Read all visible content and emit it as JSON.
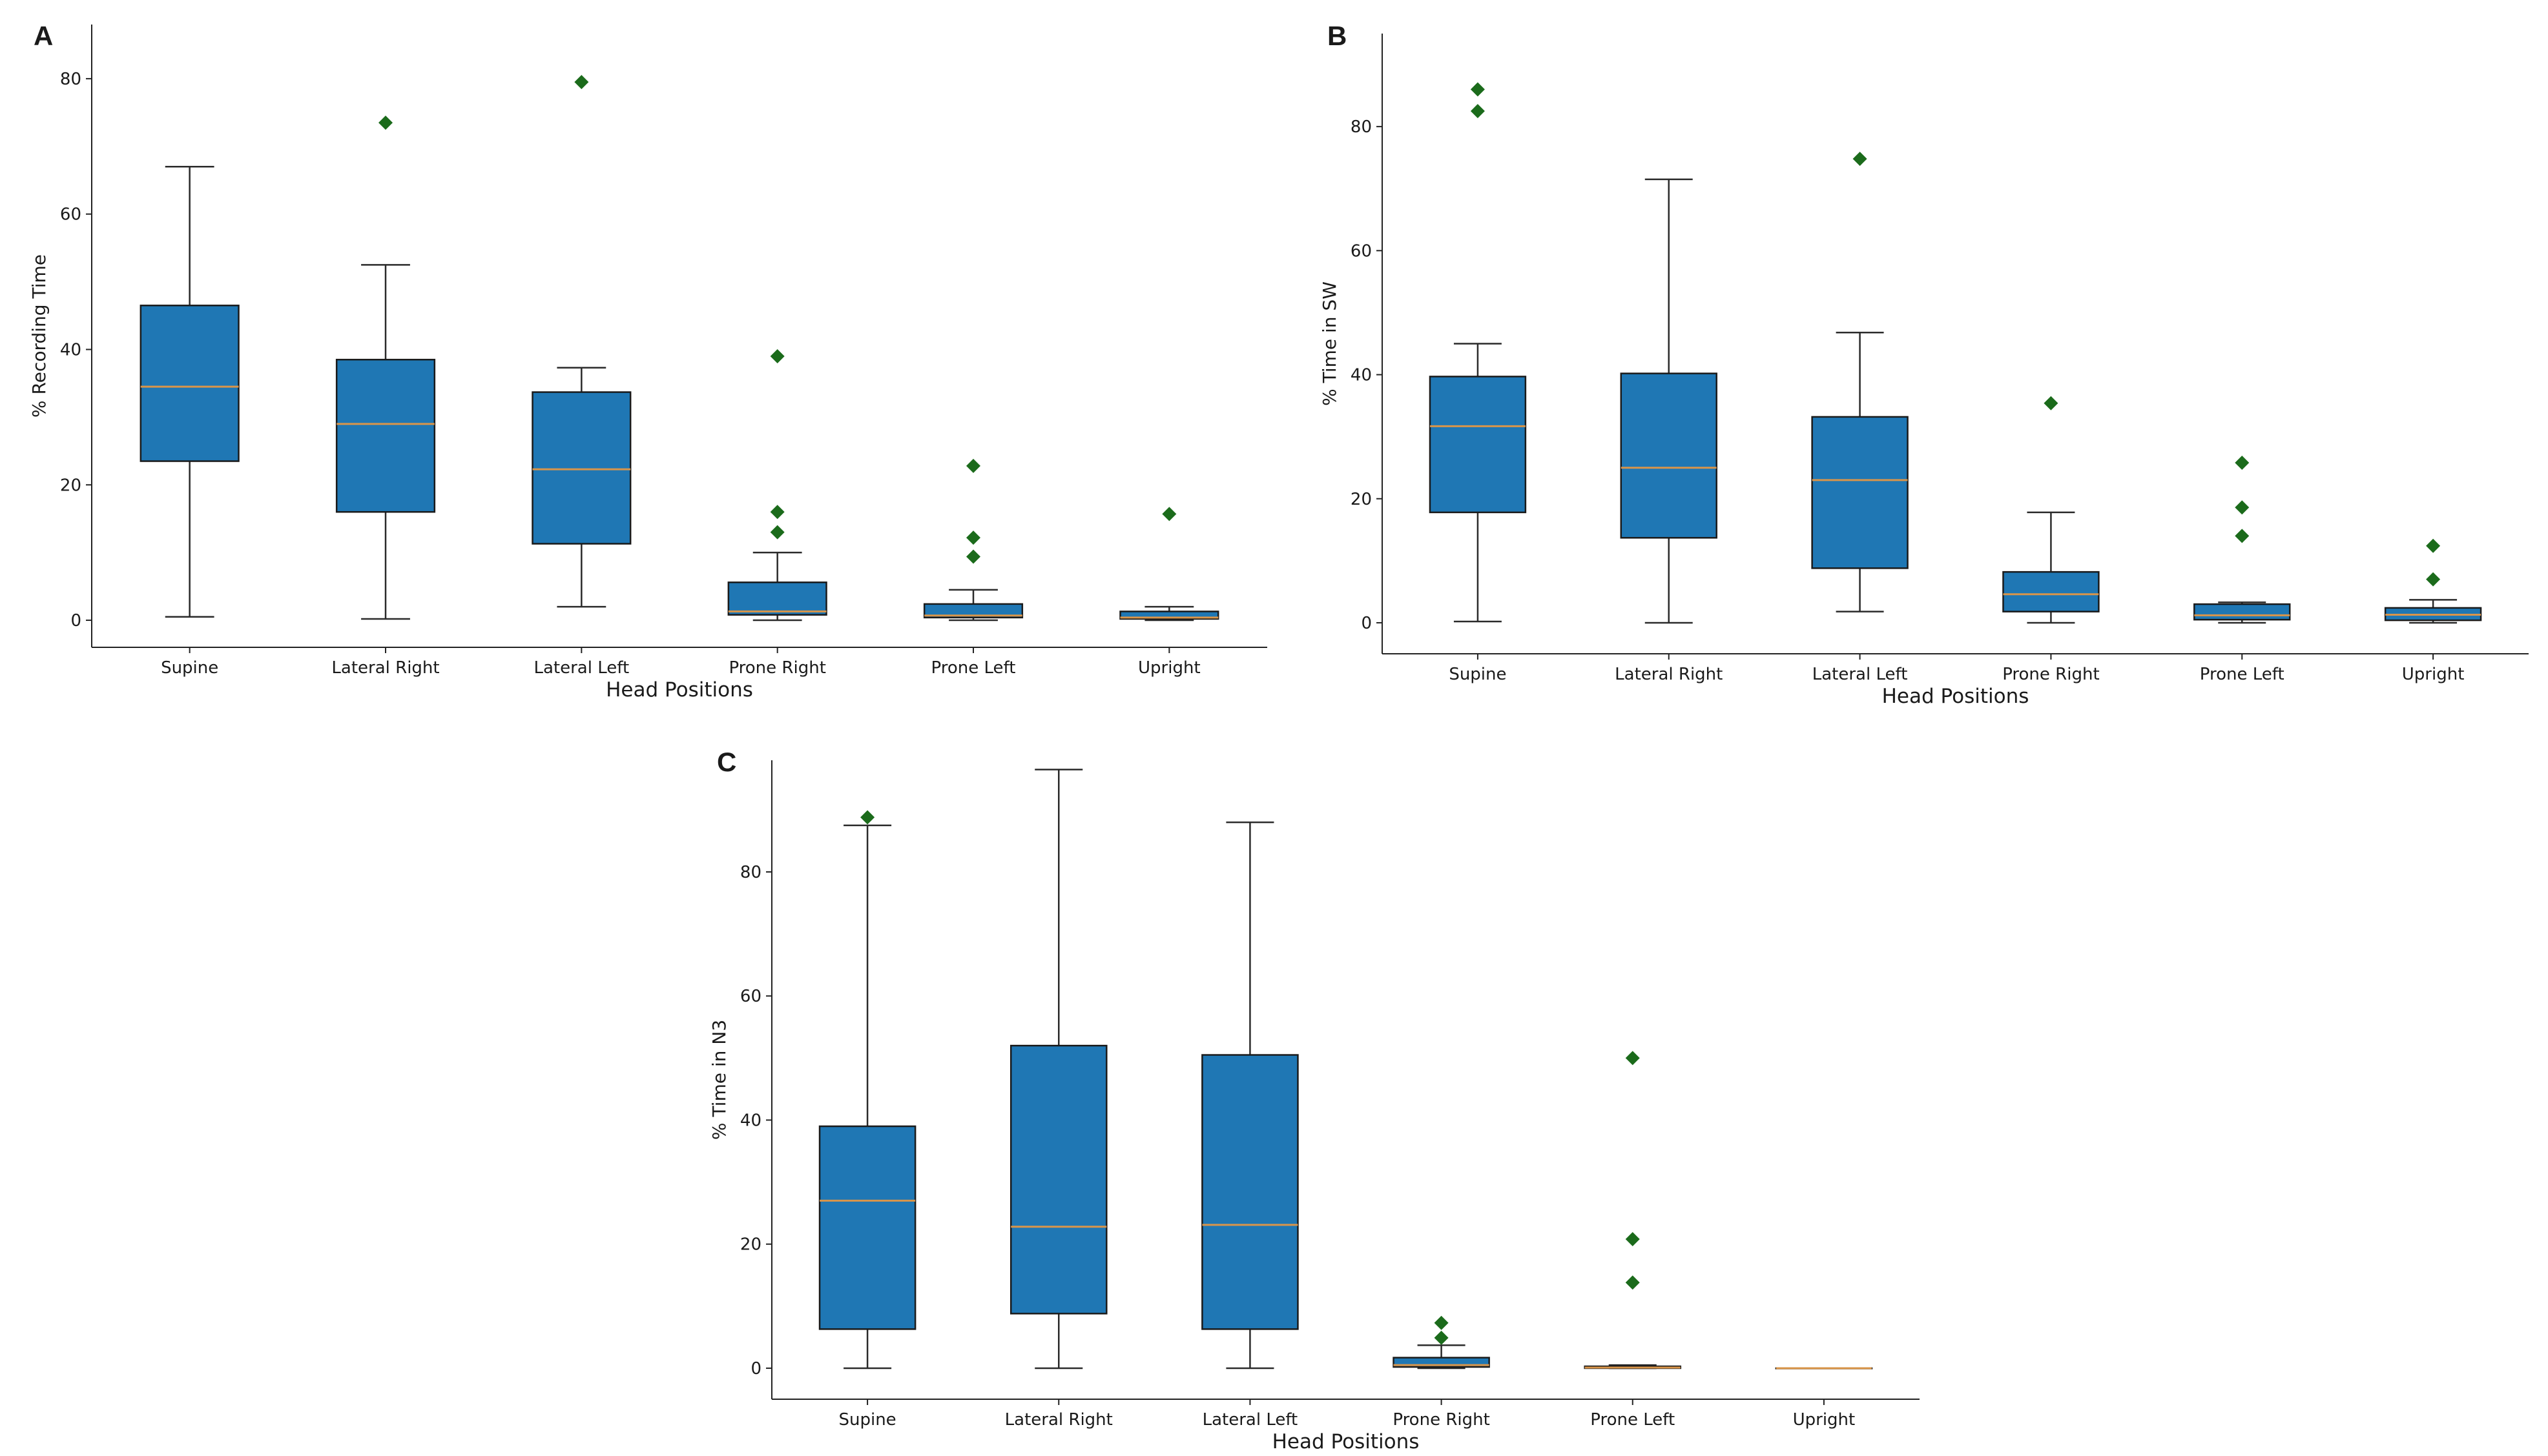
{
  "colors": {
    "box_fill": "#1f77b4",
    "median": "#d9954a",
    "flier": "#1b6b1b",
    "axis": "#222222"
  },
  "chart_data": [
    {
      "panel": "A",
      "type": "box",
      "xlabel": "Head Positions",
      "ylabel": "% Recording Time",
      "ylim": [
        -4,
        88
      ],
      "yticks": [
        0,
        20,
        40,
        60,
        80
      ],
      "categories": [
        "Supine",
        "Lateral Right",
        "Lateral Left",
        "Prone Right",
        "Prone Left",
        "Upright"
      ],
      "boxes": [
        {
          "whislo": 0.5,
          "q1": 23.5,
          "med": 34.5,
          "q3": 46.5,
          "whishi": 67,
          "fliers": []
        },
        {
          "whislo": 0.2,
          "q1": 16,
          "med": 29,
          "q3": 38.5,
          "whishi": 52.5,
          "fliers": [
            73.5
          ]
        },
        {
          "whislo": 2,
          "q1": 11.3,
          "med": 22.3,
          "q3": 33.7,
          "whishi": 37.3,
          "fliers": [
            79.5
          ]
        },
        {
          "whislo": 0,
          "q1": 0.8,
          "med": 1.3,
          "q3": 5.6,
          "whishi": 10,
          "fliers": [
            13,
            16,
            39
          ]
        },
        {
          "whislo": 0,
          "q1": 0.4,
          "med": 0.7,
          "q3": 2.4,
          "whishi": 4.5,
          "fliers": [
            9.4,
            12.2,
            22.8
          ]
        },
        {
          "whislo": 0,
          "q1": 0.2,
          "med": 0.4,
          "q3": 1.3,
          "whishi": 2,
          "fliers": [
            15.7
          ]
        }
      ],
      "grid": false
    },
    {
      "panel": "B",
      "type": "box",
      "xlabel": "Head Positions",
      "ylabel": "% Time in SW",
      "ylim": [
        -5,
        95
      ],
      "yticks": [
        0,
        20,
        40,
        60,
        80
      ],
      "categories": [
        "Supine",
        "Lateral Right",
        "Lateral Left",
        "Prone Right",
        "Prone Left",
        "Upright"
      ],
      "boxes": [
        {
          "whislo": 0.2,
          "q1": 17.8,
          "med": 31.7,
          "q3": 39.7,
          "whishi": 45,
          "fliers": [
            82.5,
            86
          ]
        },
        {
          "whislo": 0,
          "q1": 13.7,
          "med": 25,
          "q3": 40.2,
          "whishi": 71.5,
          "fliers": []
        },
        {
          "whislo": 1.8,
          "q1": 8.8,
          "med": 23,
          "q3": 33.2,
          "whishi": 46.8,
          "fliers": [
            74.8
          ]
        },
        {
          "whislo": 0,
          "q1": 1.8,
          "med": 4.6,
          "q3": 8.2,
          "whishi": 17.8,
          "fliers": [
            35.4
          ]
        },
        {
          "whislo": 0,
          "q1": 0.5,
          "med": 1.2,
          "q3": 3,
          "whishi": 3.3,
          "fliers": [
            14,
            18.6,
            25.8
          ]
        },
        {
          "whislo": 0,
          "q1": 0.4,
          "med": 1.3,
          "q3": 2.4,
          "whishi": 3.7,
          "fliers": [
            7,
            12.4
          ]
        }
      ],
      "grid": false
    },
    {
      "panel": "C",
      "type": "box",
      "xlabel": "Head Positions",
      "ylabel": "% Time in N3",
      "ylim": [
        -5,
        98
      ],
      "yticks": [
        0,
        20,
        40,
        60,
        80
      ],
      "categories": [
        "Supine",
        "Lateral Right",
        "Lateral Left",
        "Prone Right",
        "Prone Left",
        "Upright"
      ],
      "boxes": [
        {
          "whislo": 0,
          "q1": 6.3,
          "med": 27,
          "q3": 39,
          "whishi": 87.5,
          "fliers": [
            88.8
          ]
        },
        {
          "whislo": 0,
          "q1": 8.8,
          "med": 22.8,
          "q3": 52,
          "whishi": 96.5,
          "fliers": []
        },
        {
          "whislo": 0,
          "q1": 6.3,
          "med": 23.1,
          "q3": 50.5,
          "whishi": 88,
          "fliers": []
        },
        {
          "whislo": 0,
          "q1": 0.2,
          "med": 0.5,
          "q3": 1.7,
          "whishi": 3.7,
          "fliers": [
            4.9,
            7.3
          ]
        },
        {
          "whislo": 0,
          "q1": 0,
          "med": 0.1,
          "q3": 0.3,
          "whishi": 0.5,
          "fliers": [
            13.8,
            20.8,
            50
          ]
        },
        {
          "whislo": 0,
          "q1": 0,
          "med": 0,
          "q3": 0,
          "whishi": 0,
          "fliers": []
        }
      ],
      "grid": false
    }
  ]
}
